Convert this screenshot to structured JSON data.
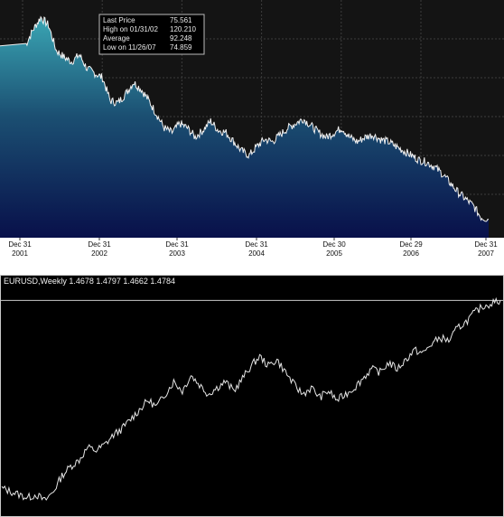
{
  "chart_data": [
    {
      "type": "area",
      "legend": {
        "placement": "top-left",
        "rows": [
          {
            "label": "Last Price",
            "value": "75.561"
          },
          {
            "label": "High on  01/31/02",
            "value": "120.210"
          },
          {
            "label": "Average",
            "value": "92.248"
          },
          {
            "label": "Low on 11/26/07",
            "value": "74.859"
          }
        ]
      },
      "x_ticks": [
        {
          "day": "Dec 31",
          "year": "2001"
        },
        {
          "day": "Dec 31",
          "year": "2002"
        },
        {
          "day": "Dec 31",
          "year": "2003"
        },
        {
          "day": "Dec 31",
          "year": "2004"
        },
        {
          "day": "Dec 30",
          "year": "2005"
        },
        {
          "day": "Dec 29",
          "year": "2006"
        },
        {
          "day": "Dec 31",
          "year": "2007"
        }
      ],
      "x_range": [
        2001.0,
        2007.0
      ],
      "ylim": [
        72,
        124
      ],
      "grid": true,
      "x": [
        2001.0,
        2001.1,
        2001.2,
        2001.3,
        2001.4,
        2001.5,
        2001.6,
        2001.7,
        2001.8,
        2001.9,
        2002.0,
        2002.1,
        2002.2,
        2002.3,
        2002.4,
        2002.5,
        2002.6,
        2002.7,
        2002.8,
        2002.9,
        2003.0,
        2003.1,
        2003.2,
        2003.3,
        2003.4,
        2003.5,
        2003.6,
        2003.7,
        2003.8,
        2003.9,
        2004.0,
        2004.1,
        2004.2,
        2004.3,
        2004.4,
        2004.5,
        2004.6,
        2004.7,
        2004.8,
        2004.9,
        2005.0,
        2005.1,
        2005.2,
        2005.3,
        2005.4,
        2005.5,
        2005.6,
        2005.7,
        2005.8,
        2005.9,
        2006.0,
        2006.1,
        2006.2,
        2006.3,
        2006.4,
        2006.5,
        2006.6,
        2006.7,
        2006.8,
        2006.9,
        2007.0
      ],
      "values": [
        114,
        117.5,
        120.2,
        118.5,
        113,
        111.5,
        110.5,
        112,
        109,
        108,
        107,
        102,
        101.5,
        103.5,
        106,
        104.5,
        102,
        99,
        96,
        95,
        97,
        96,
        94,
        95.5,
        97.5,
        95.5,
        95,
        93,
        91,
        90,
        92,
        93.5,
        93,
        94.5,
        96,
        97,
        98,
        96.5,
        95,
        94,
        95,
        96,
        94,
        93,
        94,
        94.5,
        93.5,
        93,
        92,
        91,
        90,
        89,
        88.5,
        87.5,
        86,
        84,
        82,
        80.5,
        79,
        76.5,
        76
      ]
    },
    {
      "type": "line",
      "title": "EURUSD,Weekly  1.4678 1.4797 1.4662 1.4784",
      "ylim": [
        0.8,
        1.52
      ],
      "values": [
        0.88,
        0.87,
        0.86,
        0.85,
        0.86,
        0.84,
        0.87,
        0.92,
        0.95,
        0.97,
        1.01,
        1.0,
        1.02,
        1.05,
        1.07,
        1.1,
        1.13,
        1.16,
        1.14,
        1.18,
        1.22,
        1.19,
        1.24,
        1.21,
        1.18,
        1.2,
        1.22,
        1.19,
        1.23,
        1.27,
        1.3,
        1.27,
        1.29,
        1.25,
        1.21,
        1.18,
        1.2,
        1.17,
        1.19,
        1.16,
        1.18,
        1.2,
        1.23,
        1.26,
        1.25,
        1.28,
        1.26,
        1.29,
        1.32,
        1.31,
        1.34,
        1.36,
        1.35,
        1.39,
        1.41,
        1.44,
        1.46,
        1.47,
        1.4784
      ],
      "reference_line": 1.4784
    }
  ]
}
